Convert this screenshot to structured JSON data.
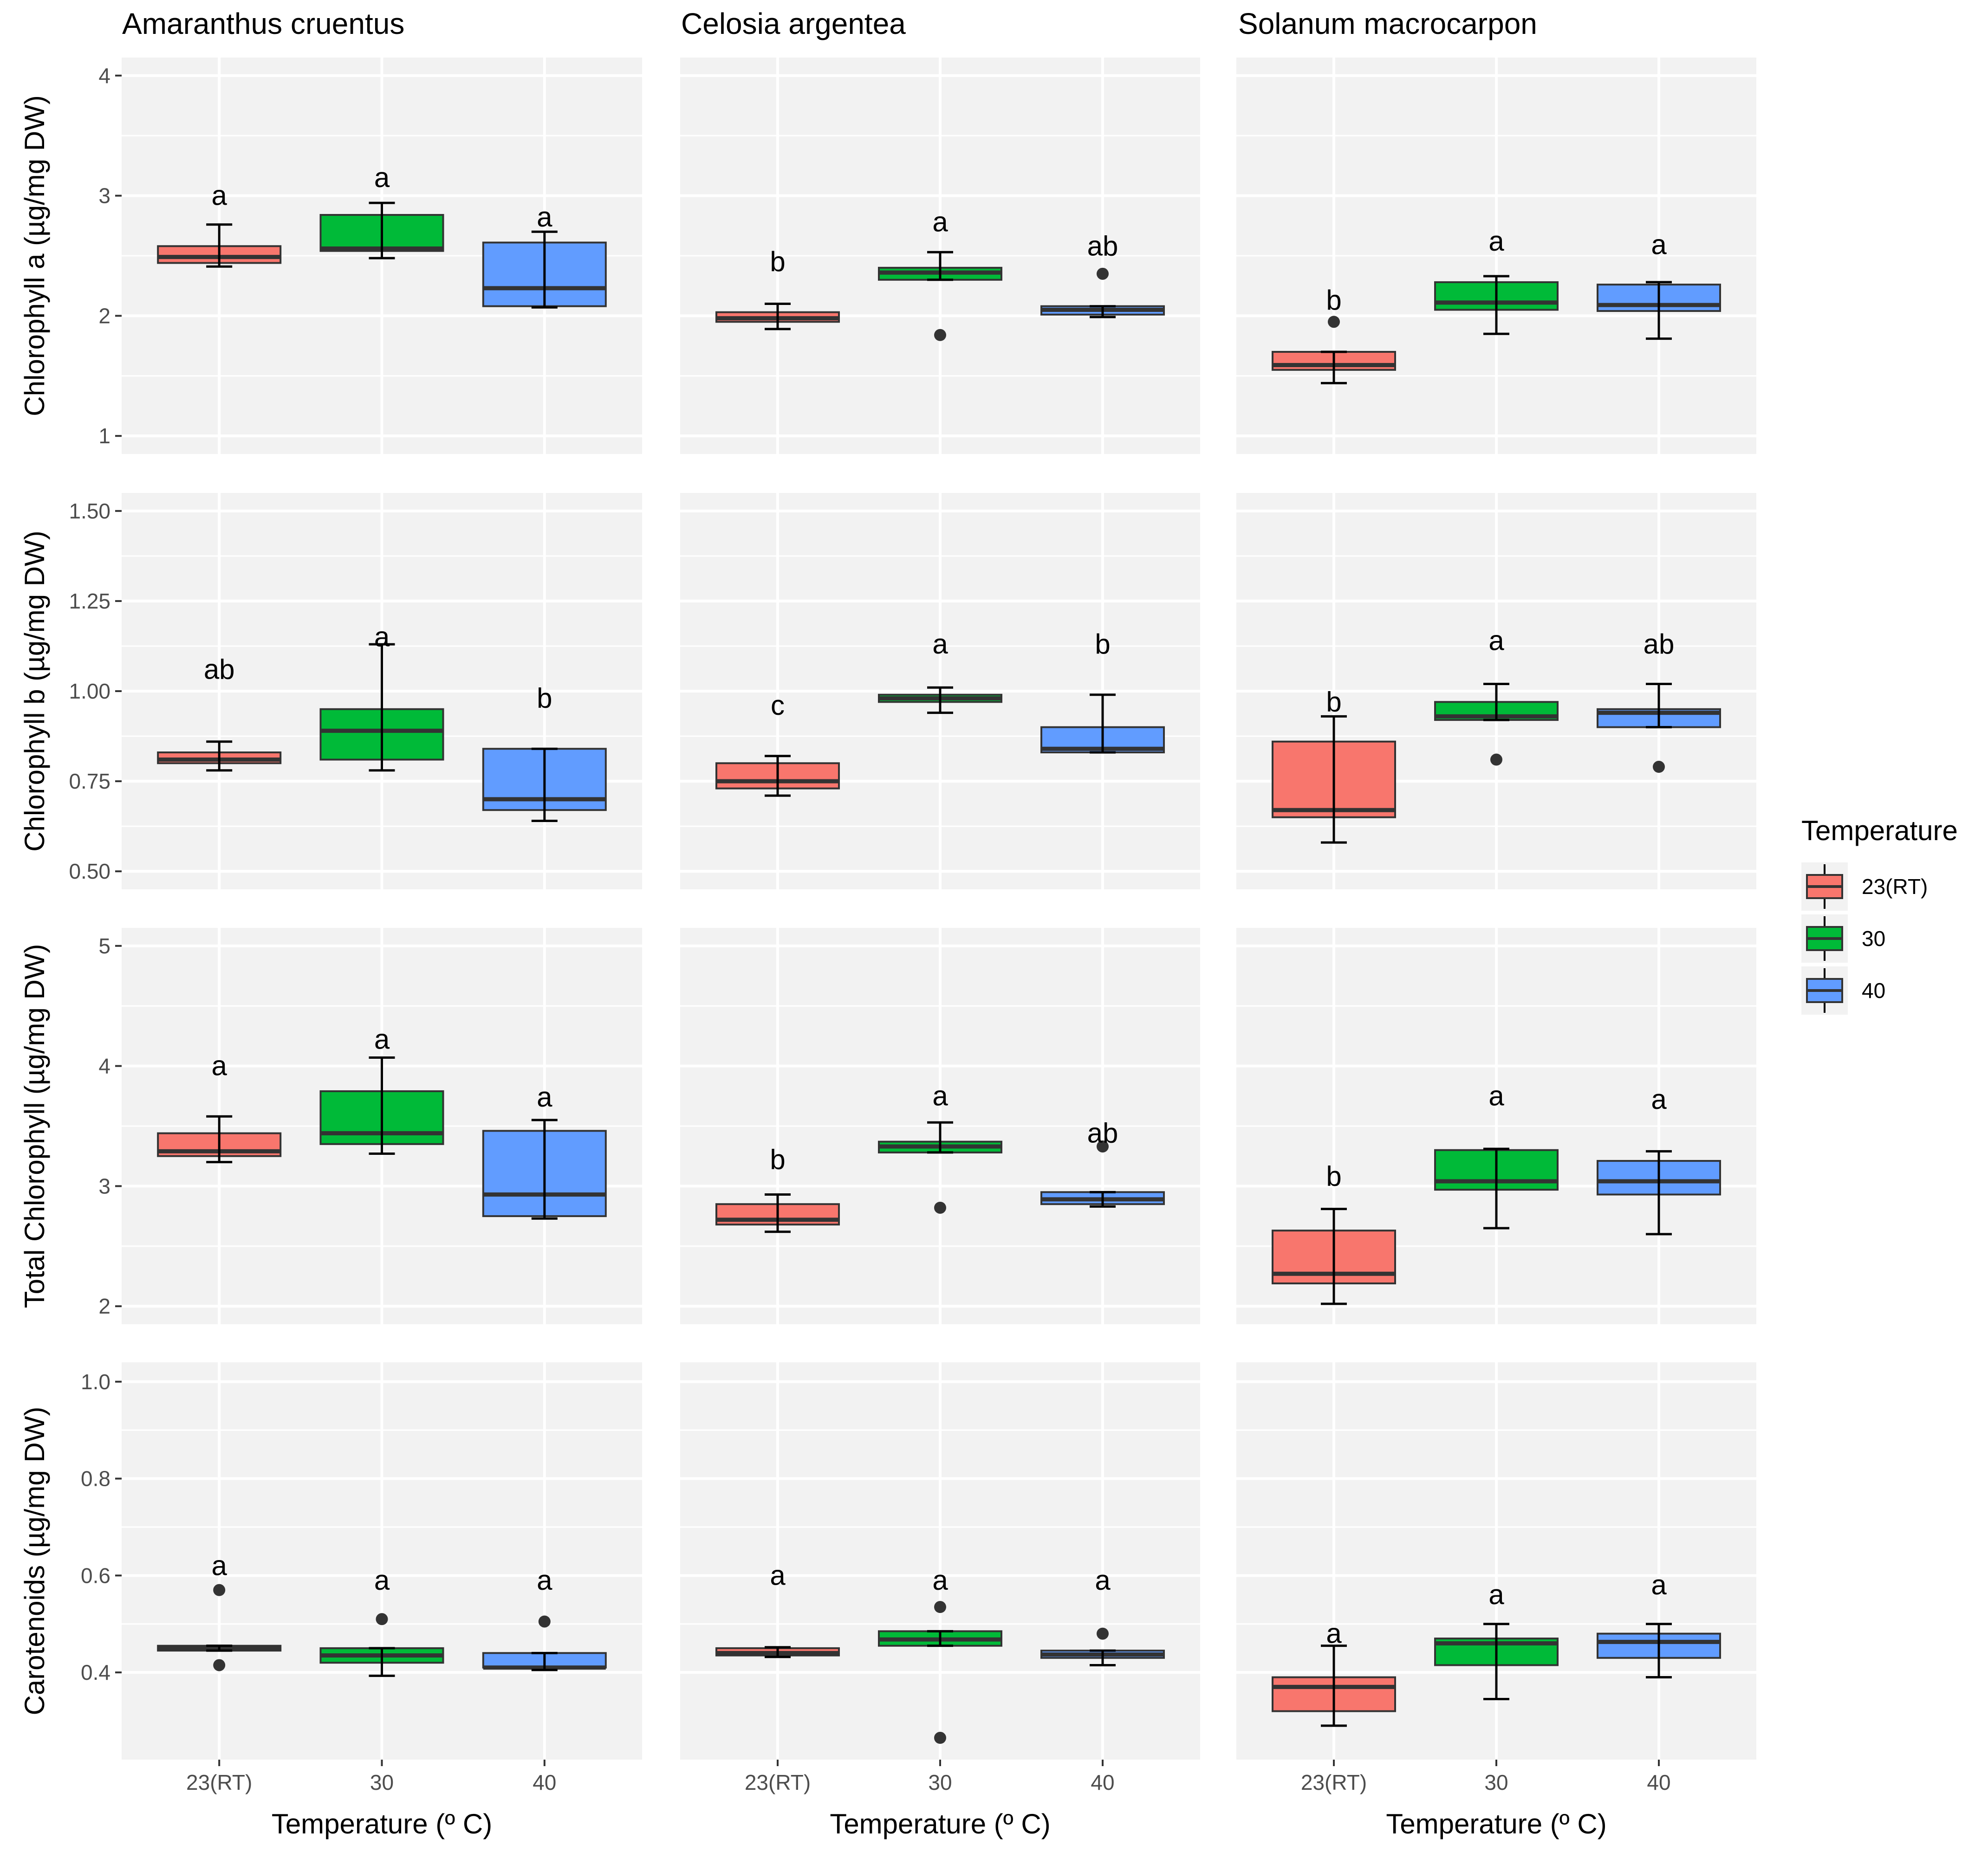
{
  "chart_data": {
    "type": "box",
    "facet_columns": [
      "Amaranthus cruentus",
      "Celosia argentea",
      "Solanum macrocarpon"
    ],
    "categories": [
      "23(RT)",
      "30",
      "40"
    ],
    "xlabel": "Temperature (º C)",
    "legend": {
      "title": "Temperature",
      "position": "right",
      "entries": [
        {
          "label": "23(RT)",
          "color": "#F8766D"
        },
        {
          "label": "30",
          "color": "#00BA38"
        },
        {
          "label": "40",
          "color": "#619CFF"
        }
      ]
    },
    "rows": [
      {
        "ylabel": "Chlorophyll a (µg/mg DW)",
        "ylim": [
          0.85,
          4.15
        ],
        "ticks": [
          1,
          2,
          3,
          4
        ],
        "tick_labels": [
          "1",
          "2",
          "3",
          "4"
        ],
        "panels": [
          [
            {
              "q1": 2.44,
              "med": 2.49,
              "q3": 2.58,
              "wlo": 2.41,
              "whi": 2.76,
              "outliers": [],
              "letter": "a",
              "letter_y": 3.0
            },
            {
              "q1": 2.54,
              "med": 2.56,
              "q3": 2.84,
              "wlo": 2.48,
              "whi": 2.94,
              "outliers": [],
              "letter": "a",
              "letter_y": 3.15
            },
            {
              "q1": 2.08,
              "med": 2.23,
              "q3": 2.61,
              "wlo": 2.07,
              "whi": 2.7,
              "outliers": [],
              "letter": "a",
              "letter_y": 2.82
            }
          ],
          [
            {
              "q1": 1.95,
              "med": 1.98,
              "q3": 2.03,
              "wlo": 1.89,
              "whi": 2.1,
              "outliers": [],
              "letter": "b",
              "letter_y": 2.45
            },
            {
              "q1": 2.3,
              "med": 2.36,
              "q3": 2.4,
              "wlo": 2.3,
              "whi": 2.53,
              "outliers": [
                1.84
              ],
              "letter": "a",
              "letter_y": 2.78
            },
            {
              "q1": 2.01,
              "med": 2.05,
              "q3": 2.08,
              "wlo": 1.99,
              "whi": 2.08,
              "outliers": [
                2.35
              ],
              "letter": "ab",
              "letter_y": 2.58
            }
          ],
          [
            {
              "q1": 1.55,
              "med": 1.59,
              "q3": 1.7,
              "wlo": 1.44,
              "whi": 1.7,
              "outliers": [
                1.95
              ],
              "letter": "b",
              "letter_y": 2.13
            },
            {
              "q1": 2.05,
              "med": 2.11,
              "q3": 2.28,
              "wlo": 1.85,
              "whi": 2.33,
              "outliers": [],
              "letter": "a",
              "letter_y": 2.62
            },
            {
              "q1": 2.04,
              "med": 2.09,
              "q3": 2.26,
              "wlo": 1.81,
              "whi": 2.28,
              "outliers": [],
              "letter": "a",
              "letter_y": 2.59
            }
          ]
        ]
      },
      {
        "ylabel": "Chlorophyll b (µg/mg DW)",
        "ylim": [
          0.45,
          1.55
        ],
        "ticks": [
          0.5,
          0.75,
          1.0,
          1.25,
          1.5
        ],
        "tick_labels": [
          "0.50",
          "0.75",
          "1.00",
          "1.25",
          "1.50"
        ],
        "panels": [
          [
            {
              "q1": 0.8,
              "med": 0.81,
              "q3": 0.83,
              "wlo": 0.78,
              "whi": 0.86,
              "outliers": [],
              "letter": "ab",
              "letter_y": 1.06
            },
            {
              "q1": 0.81,
              "med": 0.89,
              "q3": 0.95,
              "wlo": 0.78,
              "whi": 1.13,
              "outliers": [],
              "letter": "a",
              "letter_y": 1.15
            },
            {
              "q1": 0.67,
              "med": 0.7,
              "q3": 0.84,
              "wlo": 0.64,
              "whi": 0.84,
              "outliers": [],
              "letter": "b",
              "letter_y": 0.98
            }
          ],
          [
            {
              "q1": 0.73,
              "med": 0.75,
              "q3": 0.8,
              "wlo": 0.71,
              "whi": 0.82,
              "outliers": [],
              "letter": "c",
              "letter_y": 0.96
            },
            {
              "q1": 0.97,
              "med": 0.98,
              "q3": 0.99,
              "wlo": 0.94,
              "whi": 1.01,
              "outliers": [],
              "letter": "a",
              "letter_y": 1.13
            },
            {
              "q1": 0.83,
              "med": 0.84,
              "q3": 0.9,
              "wlo": 0.83,
              "whi": 0.99,
              "outliers": [],
              "letter": "b",
              "letter_y": 1.13
            }
          ],
          [
            {
              "q1": 0.65,
              "med": 0.67,
              "q3": 0.86,
              "wlo": 0.58,
              "whi": 0.93,
              "outliers": [],
              "letter": "b",
              "letter_y": 0.97
            },
            {
              "q1": 0.92,
              "med": 0.93,
              "q3": 0.97,
              "wlo": 0.92,
              "whi": 1.02,
              "outliers": [
                0.81
              ],
              "letter": "a",
              "letter_y": 1.14
            },
            {
              "q1": 0.9,
              "med": 0.94,
              "q3": 0.95,
              "wlo": 0.9,
              "whi": 1.02,
              "outliers": [
                0.79
              ],
              "letter": "ab",
              "letter_y": 1.13
            }
          ]
        ]
      },
      {
        "ylabel": "Total Chlorophyll (µg/mg DW)",
        "ylim": [
          1.85,
          5.15
        ],
        "ticks": [
          2,
          3,
          4,
          5
        ],
        "tick_labels": [
          "2",
          "3",
          "4",
          "5"
        ],
        "panels": [
          [
            {
              "q1": 3.25,
              "med": 3.29,
              "q3": 3.44,
              "wlo": 3.2,
              "whi": 3.58,
              "outliers": [],
              "letter": "a",
              "letter_y": 4.0
            },
            {
              "q1": 3.35,
              "med": 3.44,
              "q3": 3.79,
              "wlo": 3.27,
              "whi": 4.07,
              "outliers": [],
              "letter": "a",
              "letter_y": 4.22
            },
            {
              "q1": 2.75,
              "med": 2.93,
              "q3": 3.46,
              "wlo": 2.73,
              "whi": 3.55,
              "outliers": [],
              "letter": "a",
              "letter_y": 3.74
            }
          ],
          [
            {
              "q1": 2.68,
              "med": 2.72,
              "q3": 2.85,
              "wlo": 2.62,
              "whi": 2.93,
              "outliers": [],
              "letter": "b",
              "letter_y": 3.22
            },
            {
              "q1": 3.28,
              "med": 3.33,
              "q3": 3.37,
              "wlo": 3.28,
              "whi": 3.53,
              "outliers": [
                2.82
              ],
              "letter": "a",
              "letter_y": 3.75
            },
            {
              "q1": 2.85,
              "med": 2.89,
              "q3": 2.95,
              "wlo": 2.83,
              "whi": 2.95,
              "outliers": [
                3.33
              ],
              "letter": "ab",
              "letter_y": 3.44
            }
          ],
          [
            {
              "q1": 2.19,
              "med": 2.27,
              "q3": 2.63,
              "wlo": 2.02,
              "whi": 2.81,
              "outliers": [],
              "letter": "b",
              "letter_y": 3.08
            },
            {
              "q1": 2.97,
              "med": 3.04,
              "q3": 3.3,
              "wlo": 2.65,
              "whi": 3.31,
              "outliers": [],
              "letter": "a",
              "letter_y": 3.75
            },
            {
              "q1": 2.93,
              "med": 3.04,
              "q3": 3.21,
              "wlo": 2.6,
              "whi": 3.29,
              "outliers": [],
              "letter": "a",
              "letter_y": 3.72
            }
          ]
        ]
      },
      {
        "ylabel": "Carotenoids (µg/mg DW)",
        "ylim": [
          0.22,
          1.04
        ],
        "ticks": [
          0.4,
          0.6,
          0.8,
          1.0
        ],
        "tick_labels": [
          "0.4",
          "0.6",
          "0.8",
          "1.0"
        ],
        "panels": [
          [
            {
              "q1": 0.445,
              "med": 0.45,
              "q3": 0.455,
              "wlo": 0.445,
              "whi": 0.455,
              "outliers": [
                0.57,
                0.415
              ],
              "letter": "a",
              "letter_y": 0.62
            },
            {
              "q1": 0.42,
              "med": 0.435,
              "q3": 0.45,
              "wlo": 0.393,
              "whi": 0.45,
              "outliers": [
                0.51
              ],
              "letter": "a",
              "letter_y": 0.59
            },
            {
              "q1": 0.41,
              "med": 0.41,
              "q3": 0.44,
              "wlo": 0.405,
              "whi": 0.44,
              "outliers": [
                0.505
              ],
              "letter": "a",
              "letter_y": 0.59
            }
          ],
          [
            {
              "q1": 0.435,
              "med": 0.44,
              "q3": 0.45,
              "wlo": 0.432,
              "whi": 0.452,
              "outliers": [],
              "letter": "a",
              "letter_y": 0.6
            },
            {
              "q1": 0.455,
              "med": 0.468,
              "q3": 0.485,
              "wlo": 0.455,
              "whi": 0.485,
              "outliers": [
                0.535,
                0.265
              ],
              "letter": "a",
              "letter_y": 0.59
            },
            {
              "q1": 0.43,
              "med": 0.437,
              "q3": 0.445,
              "wlo": 0.415,
              "whi": 0.445,
              "outliers": [
                0.48
              ],
              "letter": "a",
              "letter_y": 0.59
            }
          ],
          [
            {
              "q1": 0.32,
              "med": 0.37,
              "q3": 0.39,
              "wlo": 0.29,
              "whi": 0.455,
              "outliers": [],
              "letter": "a",
              "letter_y": 0.48
            },
            {
              "q1": 0.415,
              "med": 0.46,
              "q3": 0.47,
              "wlo": 0.345,
              "whi": 0.5,
              "outliers": [],
              "letter": "a",
              "letter_y": 0.56
            },
            {
              "q1": 0.43,
              "med": 0.463,
              "q3": 0.48,
              "wlo": 0.39,
              "whi": 0.5,
              "outliers": [],
              "letter": "a",
              "letter_y": 0.58
            }
          ]
        ]
      }
    ]
  }
}
